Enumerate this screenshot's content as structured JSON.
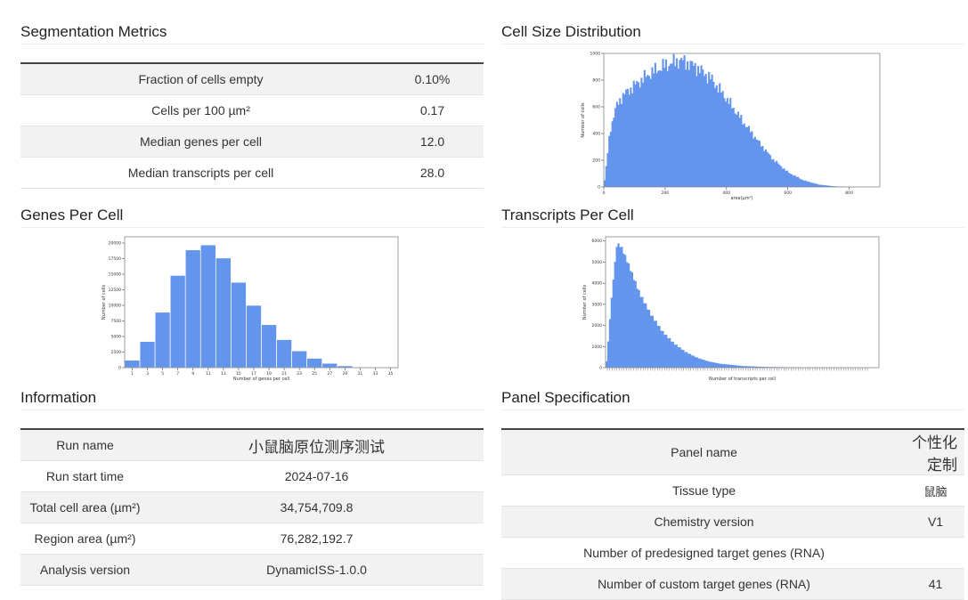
{
  "segmentation": {
    "title": "Segmentation Metrics",
    "rows": [
      {
        "label": "Fraction of cells empty",
        "value": "0.10%"
      },
      {
        "label": "Cells per 100 µm²",
        "value": "0.17"
      },
      {
        "label": "Median genes per cell",
        "value": "12.0"
      },
      {
        "label": "Median transcripts per cell",
        "value": "28.0"
      }
    ]
  },
  "information": {
    "title": "Information",
    "rows": [
      {
        "label": "Run name",
        "value": "小鼠脑原位测序测试"
      },
      {
        "label": "Run start time",
        "value": "2024-07-16"
      },
      {
        "label": "Total cell area (µm²)",
        "value": "34,754,709.8"
      },
      {
        "label": "Region area (µm²)",
        "value": "76,282,192.7"
      },
      {
        "label": "Analysis version",
        "value": "DynamicISS-1.0.0"
      }
    ]
  },
  "panel": {
    "title": "Panel Specification",
    "rows": [
      {
        "label": "Panel name",
        "value": "个性化定制"
      },
      {
        "label": "Tissue type",
        "value": "鼠脑"
      },
      {
        "label": "Chemistry version",
        "value": "V1"
      },
      {
        "label": "Number of predesigned target genes (RNA)",
        "value": ""
      },
      {
        "label": "Number of custom target genes (RNA)",
        "value": "41"
      }
    ]
  },
  "colors": {
    "bar": "#6495ed",
    "frame": "#888888"
  },
  "chart_data": [
    {
      "id": "cell-size",
      "section_title": "Cell Size Distribution",
      "type": "bar",
      "xlabel": "area(µm²)",
      "ylabel": "Number of cells",
      "xlim": [
        0,
        900
      ],
      "ylim": [
        0,
        1000
      ],
      "xticks": [
        "0",
        "200",
        "400",
        "600",
        "800"
      ],
      "yticks": [
        "0",
        "200",
        "400",
        "600",
        "800",
        "1000"
      ],
      "profile_x": [
        0,
        10,
        20,
        40,
        60,
        100,
        150,
        200,
        250,
        300,
        350,
        400,
        450,
        500,
        550,
        600,
        650,
        700,
        750,
        800,
        850
      ],
      "profile_y": [
        0,
        200,
        420,
        600,
        680,
        760,
        850,
        910,
        950,
        900,
        810,
        660,
        500,
        350,
        210,
        110,
        50,
        18,
        5,
        1,
        0
      ]
    },
    {
      "id": "genes-per-cell",
      "section_title": "Genes Per Cell",
      "type": "bar",
      "xlabel": "Number of genes per cell",
      "ylabel": "Number of cells",
      "ylim": [
        0,
        21000
      ],
      "yticks": [
        "0",
        "2500",
        "5000",
        "7500",
        "10000",
        "12500",
        "15000",
        "17500",
        "20000"
      ],
      "categories": [
        "1",
        "3",
        "5",
        "7",
        "9",
        "11",
        "13",
        "15",
        "17",
        "19",
        "21",
        "23",
        "25",
        "27",
        "29",
        "31",
        "33",
        "35"
      ],
      "values": [
        1200,
        4200,
        8900,
        14800,
        18900,
        19700,
        17600,
        13700,
        10000,
        6900,
        4500,
        2700,
        1500,
        700,
        300,
        120,
        50,
        20
      ]
    },
    {
      "id": "transcripts-per-cell",
      "section_title": "Transcripts Per Cell",
      "type": "bar",
      "xlabel": "Number of transcripts per cell",
      "ylabel": "Number of cells",
      "ylim": [
        0,
        6200
      ],
      "yticks": [
        "0",
        "1000",
        "2000",
        "3000",
        "4000",
        "5000",
        "6000"
      ],
      "profile_x": [
        1,
        3,
        6,
        10,
        14,
        20,
        30,
        40,
        50,
        60,
        70,
        80,
        90,
        100,
        120,
        140,
        170,
        200,
        240
      ],
      "profile_y": [
        300,
        1800,
        3800,
        5900,
        5700,
        4900,
        3500,
        2500,
        1700,
        1150,
        750,
        480,
        300,
        190,
        80,
        35,
        12,
        4,
        1
      ]
    }
  ]
}
